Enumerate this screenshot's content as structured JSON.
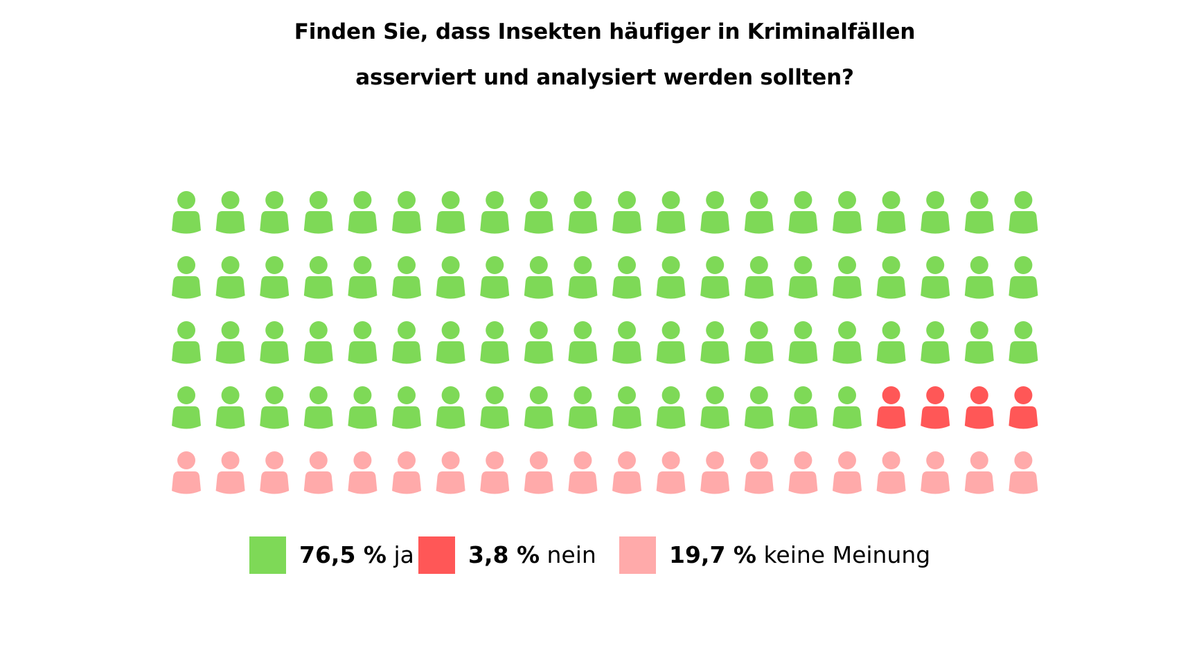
{
  "chart_data": {
    "type": "pictogram",
    "title": "Finden Sie, dass Insekten häufiger in Kriminalfällen asserviert und analysiert werden sollten?",
    "title_lines": [
      "Finden Sie, dass Insekten häufiger in Kriminalfällen",
      "asserviert und analysiert werden sollten?"
    ],
    "icon": "person-icon",
    "grid": {
      "rows": 5,
      "columns": 20
    },
    "fill_order": "row-major",
    "series": [
      {
        "name": "ja",
        "value_percent": 76.5,
        "icon_count": 76,
        "color": "#7ED957",
        "label_value": "76,5 %",
        "label_text": "ja"
      },
      {
        "name": "nein",
        "value_percent": 3.8,
        "icon_count": 4,
        "color": "#FF5757",
        "label_value": "3,8 %",
        "label_text": "nein"
      },
      {
        "name": "keine Meinung",
        "value_percent": 19.7,
        "icon_count": 20,
        "color": "#FFAAAA",
        "label_value": "19,7 %",
        "label_text": "keine Meinung"
      }
    ],
    "legend_position": "bottom-center"
  }
}
